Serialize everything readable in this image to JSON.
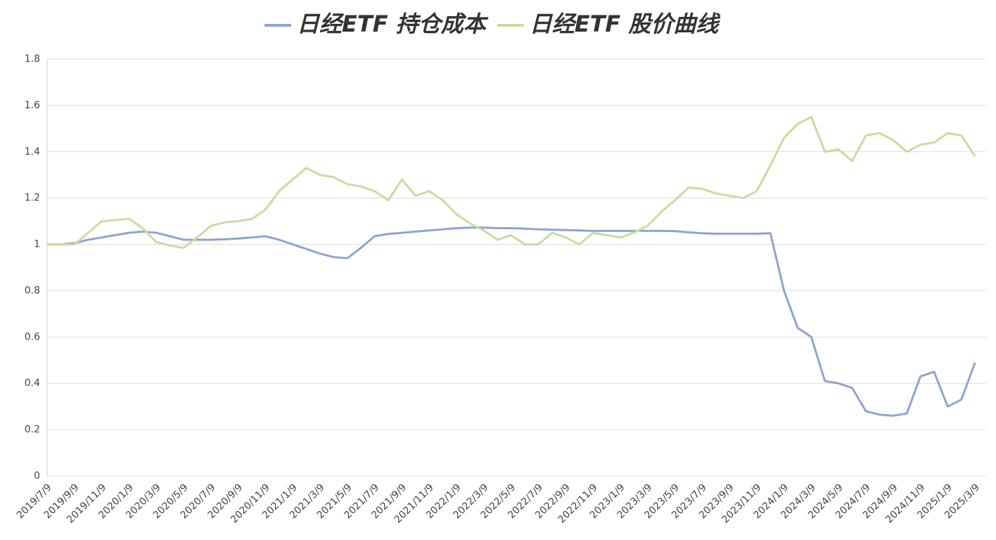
{
  "chart_data": {
    "type": "line",
    "categories": [
      "2019/7/9",
      null,
      "2019/9/9",
      null,
      "2019/11/9",
      null,
      "2020/1/9",
      null,
      "2020/3/9",
      null,
      "2020/5/9",
      null,
      "2020/7/9",
      null,
      "2020/9/9",
      null,
      "2020/11/9",
      null,
      "2021/1/9",
      null,
      "2021/3/9",
      null,
      "2021/5/9",
      null,
      "2021/7/9",
      null,
      "2021/9/9",
      null,
      "2021/11/9",
      null,
      "2022/1/9",
      null,
      "2022/3/9",
      null,
      "2022/5/9",
      null,
      "2022/7/9",
      null,
      "2022/9/9",
      null,
      "2022/11/9",
      null,
      "2023/1/9",
      null,
      "2023/3/9",
      null,
      "2023/5/9",
      null,
      "2023/7/9",
      null,
      "2023/9/9",
      null,
      "2023/11/9",
      null,
      "2024/1/9",
      null,
      "2024/3/9",
      null,
      "2024/5/9",
      null,
      "2024/7/9",
      null,
      "2024/9/9",
      null,
      "2024/11/9",
      null,
      "2025/1/9",
      null,
      "2025/3/9"
    ],
    "series": [
      {
        "name": "日经ETF 持仓成本",
        "color": "#8da5d0",
        "values": [
          1.0,
          1.0,
          1.005,
          1.02,
          1.03,
          1.04,
          1.05,
          1.055,
          1.05,
          1.035,
          1.02,
          1.02,
          1.02,
          1.022,
          1.025,
          1.03,
          1.035,
          1.02,
          1.0,
          0.98,
          0.96,
          0.945,
          0.94,
          0.985,
          1.035,
          1.045,
          1.05,
          1.055,
          1.06,
          1.065,
          1.07,
          1.072,
          1.072,
          1.07,
          1.07,
          1.068,
          1.065,
          1.063,
          1.062,
          1.06,
          1.058,
          1.058,
          1.058,
          1.058,
          1.058,
          1.058,
          1.057,
          1.052,
          1.048,
          1.046,
          1.046,
          1.046,
          1.046,
          1.048,
          0.8,
          0.64,
          0.6,
          0.41,
          0.4,
          0.38,
          0.28,
          0.265,
          0.26,
          0.27,
          0.43,
          0.45,
          0.3,
          0.33,
          0.49
        ]
      },
      {
        "name": "日经ETF 股价曲线",
        "color": "#c9dca0",
        "values": [
          1.0,
          1.0,
          1.0,
          1.05,
          1.1,
          1.105,
          1.11,
          1.07,
          1.01,
          0.995,
          0.985,
          1.03,
          1.08,
          1.095,
          1.1,
          1.11,
          1.15,
          1.23,
          1.28,
          1.33,
          1.3,
          1.29,
          1.26,
          1.25,
          1.23,
          1.19,
          1.28,
          1.21,
          1.23,
          1.19,
          1.13,
          1.09,
          1.06,
          1.02,
          1.04,
          1.0,
          1.0,
          1.05,
          1.03,
          1.0,
          1.05,
          1.04,
          1.03,
          1.05,
          1.08,
          1.14,
          1.19,
          1.245,
          1.24,
          1.22,
          1.21,
          1.2,
          1.23,
          1.34,
          1.46,
          1.52,
          1.55,
          1.4,
          1.41,
          1.36,
          1.47,
          1.48,
          1.45,
          1.4,
          1.43,
          1.44,
          1.48,
          1.47,
          1.38
        ]
      }
    ],
    "ylim": [
      0,
      1.8
    ],
    "yticks": [
      0,
      0.2,
      0.4,
      0.6,
      0.8,
      1,
      1.2,
      1.4,
      1.6,
      1.8
    ],
    "grid": true,
    "legend": "top"
  }
}
